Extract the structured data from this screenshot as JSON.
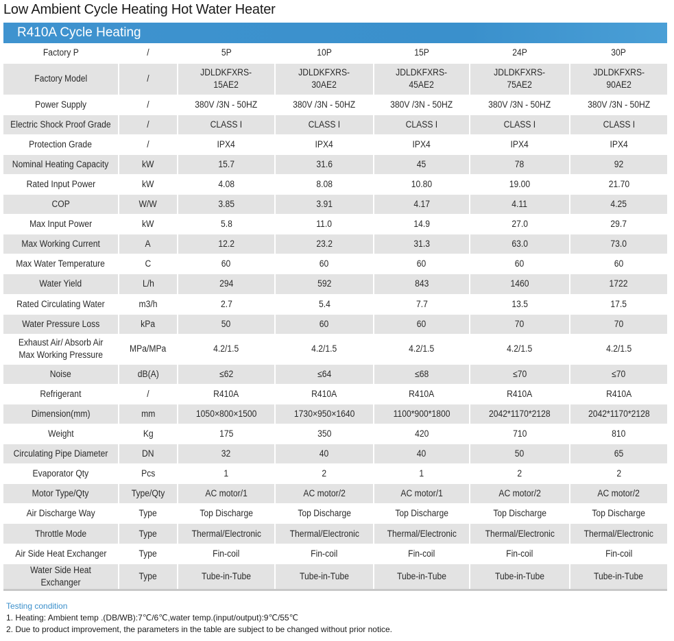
{
  "title": "Low Ambient Cycle Heating Hot Water Heater",
  "banner": "R410A Cycle Heating",
  "table": {
    "rows": [
      {
        "label": "Factory P",
        "unit": "/",
        "values": [
          "5P",
          "10P",
          "15P",
          "24P",
          "30P"
        ]
      },
      {
        "label": "Factory Model",
        "unit": "/",
        "values": [
          "JDLDKFXRS-\n15AE2",
          "JDLDKFXRS-\n30AE2",
          "JDLDKFXRS-\n45AE2",
          "JDLDKFXRS-\n75AE2",
          "JDLDKFXRS-\n90AE2"
        ]
      },
      {
        "label": "Power Supply",
        "unit": "/",
        "values": [
          "380V /3N - 50HZ",
          "380V /3N - 50HZ",
          "380V /3N - 50HZ",
          "380V /3N - 50HZ",
          "380V /3N - 50HZ"
        ]
      },
      {
        "label": "Electric Shock Proof Grade",
        "unit": "/",
        "values": [
          "CLASS I",
          "CLASS I",
          "CLASS I",
          "CLASS I",
          "CLASS I"
        ]
      },
      {
        "label": "Protection Grade",
        "unit": "/",
        "values": [
          "IPX4",
          "IPX4",
          "IPX4",
          "IPX4",
          "IPX4"
        ]
      },
      {
        "label": "Nominal Heating Capacity",
        "unit": "kW",
        "values": [
          "15.7",
          "31.6",
          "45",
          "78",
          "92"
        ]
      },
      {
        "label": "Rated Input Power",
        "unit": "kW",
        "values": [
          "4.08",
          "8.08",
          "10.80",
          "19.00",
          "21.70"
        ]
      },
      {
        "label": "COP",
        "unit": "W/W",
        "values": [
          "3.85",
          "3.91",
          "4.17",
          "4.11",
          "4.25"
        ]
      },
      {
        "label": "Max Input Power",
        "unit": "kW",
        "values": [
          "5.8",
          "11.0",
          "14.9",
          "27.0",
          "29.7"
        ]
      },
      {
        "label": "Max Working Current",
        "unit": "A",
        "values": [
          "12.2",
          "23.2",
          "31.3",
          "63.0",
          "73.0"
        ]
      },
      {
        "label": "Max Water Temperature",
        "unit": "C",
        "values": [
          "60",
          "60",
          "60",
          "60",
          "60"
        ]
      },
      {
        "label": "Water Yield",
        "unit": "L/h",
        "values": [
          "294",
          "592",
          "843",
          "1460",
          "1722"
        ]
      },
      {
        "label": "Rated Circulating Water",
        "unit": "m3/h",
        "values": [
          "2.7",
          "5.4",
          "7.7",
          "13.5",
          "17.5"
        ]
      },
      {
        "label": "Water Pressure Loss",
        "unit": "kPa",
        "values": [
          "50",
          "60",
          "60",
          "70",
          "70"
        ]
      },
      {
        "label": "Exhaust Air/ Absorb Air\nMax Working Pressure",
        "unit": "MPa/MPa",
        "values": [
          "4.2/1.5",
          "4.2/1.5",
          "4.2/1.5",
          "4.2/1.5",
          "4.2/1.5"
        ]
      },
      {
        "label": "Noise",
        "unit": "dB(A)",
        "values": [
          "≤62",
          "≤64",
          "≤68",
          "≤70",
          "≤70"
        ]
      },
      {
        "label": "Refrigerant",
        "unit": "/",
        "values": [
          "R410A",
          "R410A",
          "R410A",
          "R410A",
          "R410A"
        ]
      },
      {
        "label": "Dimension(mm)",
        "unit": "mm",
        "values": [
          "1050×800×1500",
          "1730×950×1640",
          "1100*900*1800",
          "2042*1170*2128",
          "2042*1170*2128"
        ]
      },
      {
        "label": "Weight",
        "unit": "Kg",
        "values": [
          "175",
          "350",
          "420",
          "710",
          "810"
        ]
      },
      {
        "label": "Circulating Pipe Diameter",
        "unit": "DN",
        "values": [
          "32",
          "40",
          "40",
          "50",
          "65"
        ]
      },
      {
        "label": "Evaporator Qty",
        "unit": "Pcs",
        "values": [
          "1",
          "2",
          "1",
          "2",
          "2"
        ]
      },
      {
        "label": "Motor Type/Qty",
        "unit": "Type/Qty",
        "values": [
          "AC motor/1",
          "AC motor/2",
          "AC motor/1",
          "AC motor/2",
          "AC motor/2"
        ]
      },
      {
        "label": "Air Discharge Way",
        "unit": "Type",
        "values": [
          "Top Discharge",
          "Top Discharge",
          "Top Discharge",
          "Top Discharge",
          "Top Discharge"
        ]
      },
      {
        "label": "Throttle Mode",
        "unit": "Type",
        "values": [
          "Thermal/Electronic",
          "Thermal/Electronic",
          "Thermal/Electronic",
          "Thermal/Electronic",
          "Thermal/Electronic"
        ]
      },
      {
        "label": "Air Side Heat Exchanger",
        "unit": "Type",
        "values": [
          "Fin-coil",
          "Fin-coil",
          "Fin-coil",
          "Fin-coil",
          "Fin-coil"
        ]
      },
      {
        "label": "Water Side Heat Exchanger",
        "unit": "Type",
        "values": [
          "Tube-in-Tube",
          "Tube-in-Tube",
          "Tube-in-Tube",
          "Tube-in-Tube",
          "Tube-in-Tube"
        ]
      }
    ]
  },
  "notes": {
    "heading": "Testing condition",
    "items": [
      "1. Heating: Ambient temp .(DB/WB):7℃/6℃,water temp.(input/output):9℃/55℃",
      "2. Due to product improvement, the parameters in the table are subject to be changed without prior notice."
    ]
  },
  "colors": {
    "banner": "#3a90cc",
    "row_alt": "#e3e3e3",
    "testing_heading": "#3a8fcb"
  }
}
